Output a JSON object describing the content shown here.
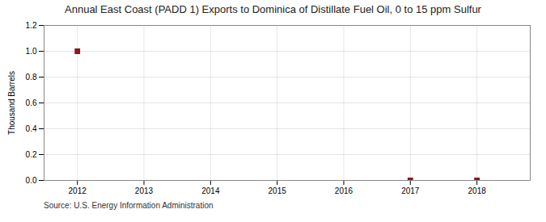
{
  "chart_data": {
    "type": "scatter",
    "title": "Annual East Coast (PADD 1) Exports to Dominica of Distillate Fuel Oil, 0 to 15 ppm Sulfur",
    "ylabel": "Thousand Barrels",
    "source": "Source: U.S. Energy Information Administration",
    "x": [
      2012,
      2017,
      2018
    ],
    "values": [
      1.0,
      0.0,
      0.0
    ],
    "color": "#8b1a1a",
    "marker": "square",
    "xlim": [
      2011.5,
      2018.8
    ],
    "ylim": [
      0.0,
      1.2
    ],
    "xticks": [
      2012,
      2013,
      2014,
      2015,
      2016,
      2017,
      2018
    ],
    "yticks": [
      {
        "value": 0.0,
        "label": "0.0"
      },
      0.2,
      0.4,
      0.6,
      0.8,
      {
        "value": 1.0,
        "label": "1.0"
      },
      1.2
    ],
    "grid": true
  }
}
